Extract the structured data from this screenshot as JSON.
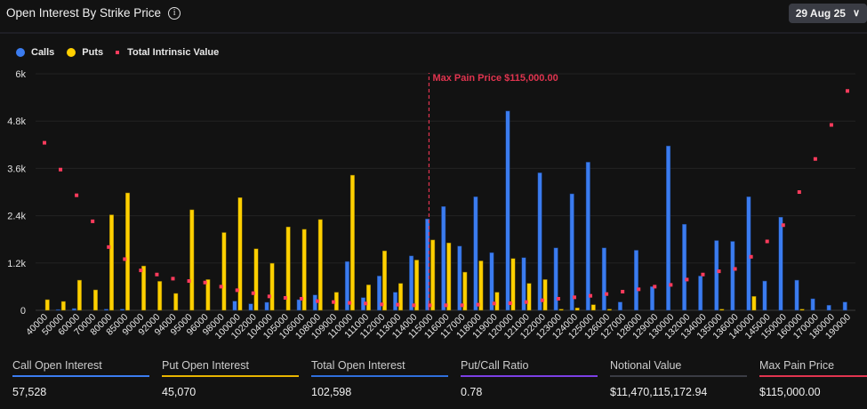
{
  "header": {
    "title": "Open Interest By Strike Price",
    "info_icon": "info-icon",
    "date_selector": "29 Aug 25",
    "chevron_icon": "chevron-down-icon"
  },
  "legend": [
    {
      "label": "Calls",
      "color": "#3b7cf0"
    },
    {
      "label": "Puts",
      "color": "#ffd000"
    },
    {
      "label": "Total Intrinsic Value",
      "color": "#ff3b5c"
    }
  ],
  "chart_data": {
    "type": "bar",
    "title": "Open Interest By Strike Price",
    "categories": [
      "40000",
      "50000",
      "60000",
      "70000",
      "80000",
      "85000",
      "90000",
      "92000",
      "94000",
      "95000",
      "96000",
      "98000",
      "100000",
      "102000",
      "104000",
      "105000",
      "106000",
      "108000",
      "109000",
      "110000",
      "111000",
      "112000",
      "113000",
      "114000",
      "115000",
      "116000",
      "117000",
      "118000",
      "119000",
      "120000",
      "121000",
      "122000",
      "123000",
      "124000",
      "125000",
      "126000",
      "127000",
      "128000",
      "129000",
      "130000",
      "132000",
      "134000",
      "135000",
      "136000",
      "140000",
      "145000",
      "150000",
      "160000",
      "170000",
      "180000",
      "190000"
    ],
    "series": [
      {
        "name": "Calls",
        "kind": "bar",
        "color": "#3b7cf0",
        "values": [
          0,
          20,
          45,
          0,
          30,
          30,
          0,
          0,
          0,
          0,
          0,
          0,
          233,
          165,
          203,
          0,
          270,
          390,
          0,
          1238,
          323,
          870,
          458,
          1380,
          2318,
          2633,
          1628,
          2880,
          1463,
          5055,
          1335,
          3488,
          1583,
          2955,
          3758,
          1583,
          210,
          1523,
          600,
          4170,
          2183,
          870,
          1770,
          1748,
          2880,
          743,
          2363,
          765,
          293,
          128,
          210
        ]
      },
      {
        "name": "Puts",
        "kind": "bar",
        "color": "#ffd000",
        "values": [
          270,
          225,
          765,
          518,
          2423,
          2978,
          1125,
          735,
          428,
          2550,
          780,
          1973,
          2858,
          1560,
          1193,
          2115,
          2055,
          2303,
          458,
          3428,
          645,
          1508,
          683,
          1275,
          1785,
          1710,
          968,
          1253,
          458,
          1313,
          683,
          780,
          30,
          60,
          143,
          30,
          0,
          0,
          0,
          0,
          0,
          0,
          30,
          0,
          353,
          0,
          0,
          30,
          0,
          0,
          0
        ]
      },
      {
        "name": "Total Intrinsic Value",
        "kind": "scatter",
        "color": "#ff3b5c",
        "values": [
          4250,
          3570,
          2918,
          2258,
          1605,
          1298,
          1013,
          908,
          803,
          743,
          705,
          600,
          510,
          435,
          353,
          315,
          293,
          233,
          210,
          188,
          173,
          150,
          143,
          128,
          128,
          128,
          128,
          143,
          173,
          180,
          210,
          255,
          293,
          330,
          368,
          413,
          473,
          533,
          600,
          645,
          780,
          908,
          990,
          1050,
          1358,
          1748,
          2160,
          3000,
          3840,
          4703,
          5565
        ]
      }
    ],
    "yticks": [
      "0",
      "1.2k",
      "2.4k",
      "3.6k",
      "4.8k",
      "6k"
    ],
    "ylim": [
      0,
      6000
    ],
    "grid": true,
    "legend_position": "top-left",
    "annotation": {
      "category": "115000",
      "label": "Max Pain Price $115,000.00",
      "color": "#e0344f"
    }
  },
  "stats": [
    {
      "label": "Call Open Interest",
      "value": "57,528",
      "color": "#3b7cf0"
    },
    {
      "label": "Put Open Interest",
      "value": "45,070",
      "color": "#e8b400"
    },
    {
      "label": "Total Open Interest",
      "value": "102,598",
      "color": "#2f6fdc"
    },
    {
      "label": "Put/Call Ratio",
      "value": "0.78",
      "color": "#7b3fe4"
    },
    {
      "label": "Notional Value",
      "value": "$11,470,115,172.94",
      "color": "#3a3c44"
    },
    {
      "label": "Max Pain Price",
      "value": "$115,000.00",
      "color": "#e0344f"
    }
  ]
}
